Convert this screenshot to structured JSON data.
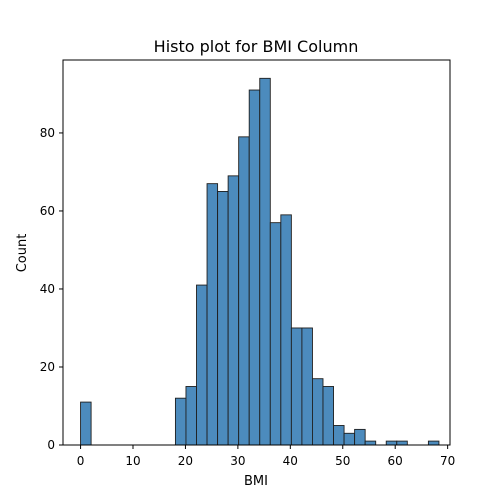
{
  "chart_data": {
    "type": "bar",
    "title": "Histo plot for BMI Column",
    "xlabel": "BMI",
    "ylabel": "Count",
    "xlim": [
      -3.35,
      70.45
    ],
    "ylim": [
      0,
      98.7
    ],
    "x_ticks": [
      0,
      10,
      20,
      30,
      40,
      50,
      60,
      70
    ],
    "y_ticks": [
      0,
      20,
      40,
      60,
      80
    ],
    "bin_start": 0,
    "bin_width": 2.01,
    "values": [
      11,
      0,
      0,
      0,
      0,
      0,
      0,
      0,
      0,
      12,
      15,
      41,
      67,
      65,
      69,
      79,
      91,
      94,
      57,
      59,
      30,
      30,
      17,
      15,
      5,
      3,
      4,
      1,
      0,
      1,
      1,
      0,
      0,
      1
    ],
    "bar_color": "#4c8bbd",
    "edge_color": "#1f1f1f",
    "grid": false,
    "legend": "none"
  }
}
